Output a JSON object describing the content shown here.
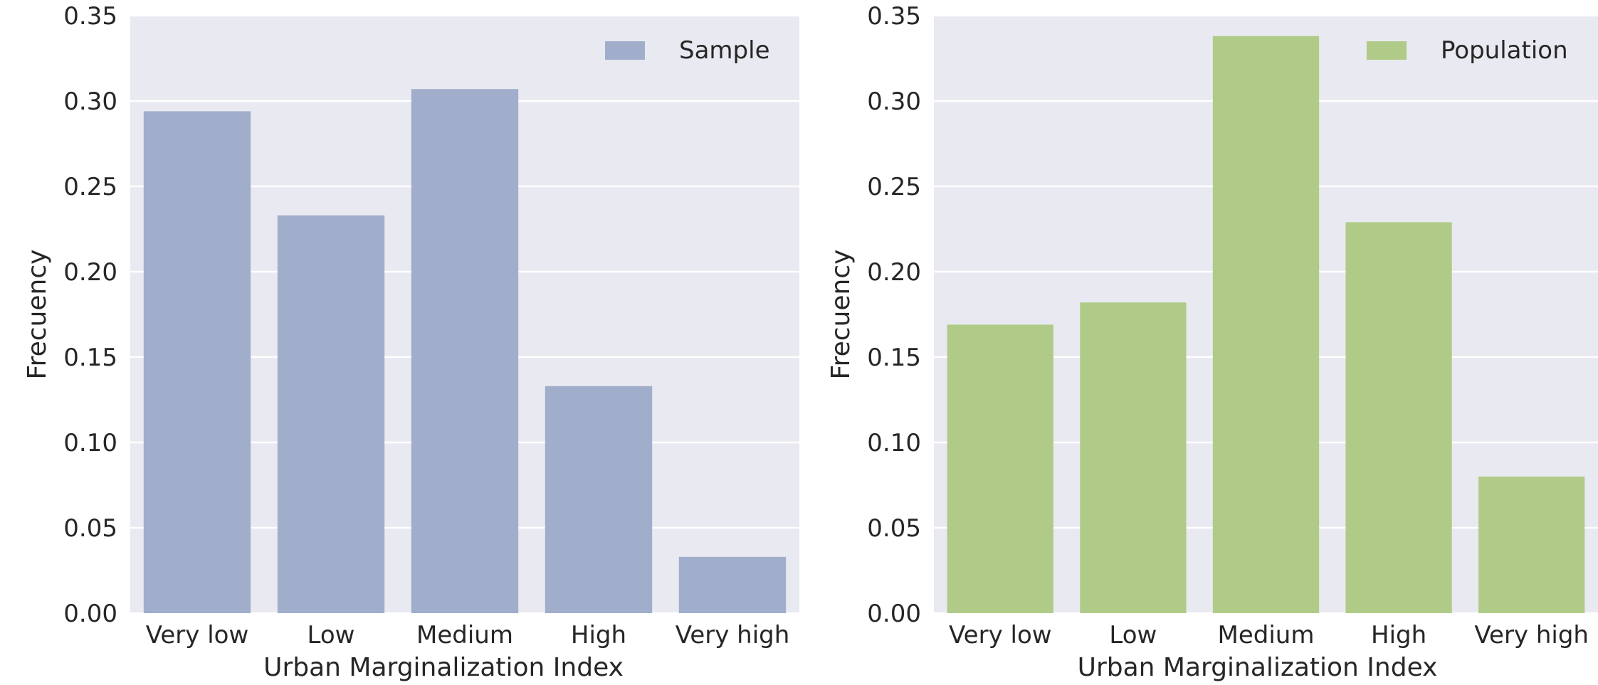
{
  "chart_data": [
    {
      "type": "bar",
      "categories": [
        "Very low",
        "Low",
        "Medium",
        "High",
        "Very high"
      ],
      "series": [
        {
          "name": "Sample",
          "values": [
            0.294,
            0.233,
            0.307,
            0.133,
            0.033
          ]
        }
      ],
      "xlabel": "Urban Marginalization Index",
      "ylabel": "Frecuency",
      "ylim": [
        0,
        0.35
      ],
      "yticks": [
        "0.00",
        "0.05",
        "0.10",
        "0.15",
        "0.20",
        "0.25",
        "0.30",
        "0.35"
      ],
      "grid": true,
      "legend": "top-right",
      "color": "#a0aecb",
      "background": "#e9e9f1"
    },
    {
      "type": "bar",
      "categories": [
        "Very low",
        "Low",
        "Medium",
        "High",
        "Very high"
      ],
      "series": [
        {
          "name": "Population",
          "values": [
            0.169,
            0.182,
            0.338,
            0.229,
            0.08
          ]
        }
      ],
      "xlabel": "Urban Marginalization Index",
      "ylabel": "Frecuency",
      "ylim": [
        0,
        0.35
      ],
      "yticks": [
        "0.00",
        "0.05",
        "0.10",
        "0.15",
        "0.20",
        "0.25",
        "0.30",
        "0.35"
      ],
      "grid": true,
      "legend": "top-right",
      "color": "#afcb87",
      "background": "#e9e9f1"
    }
  ]
}
